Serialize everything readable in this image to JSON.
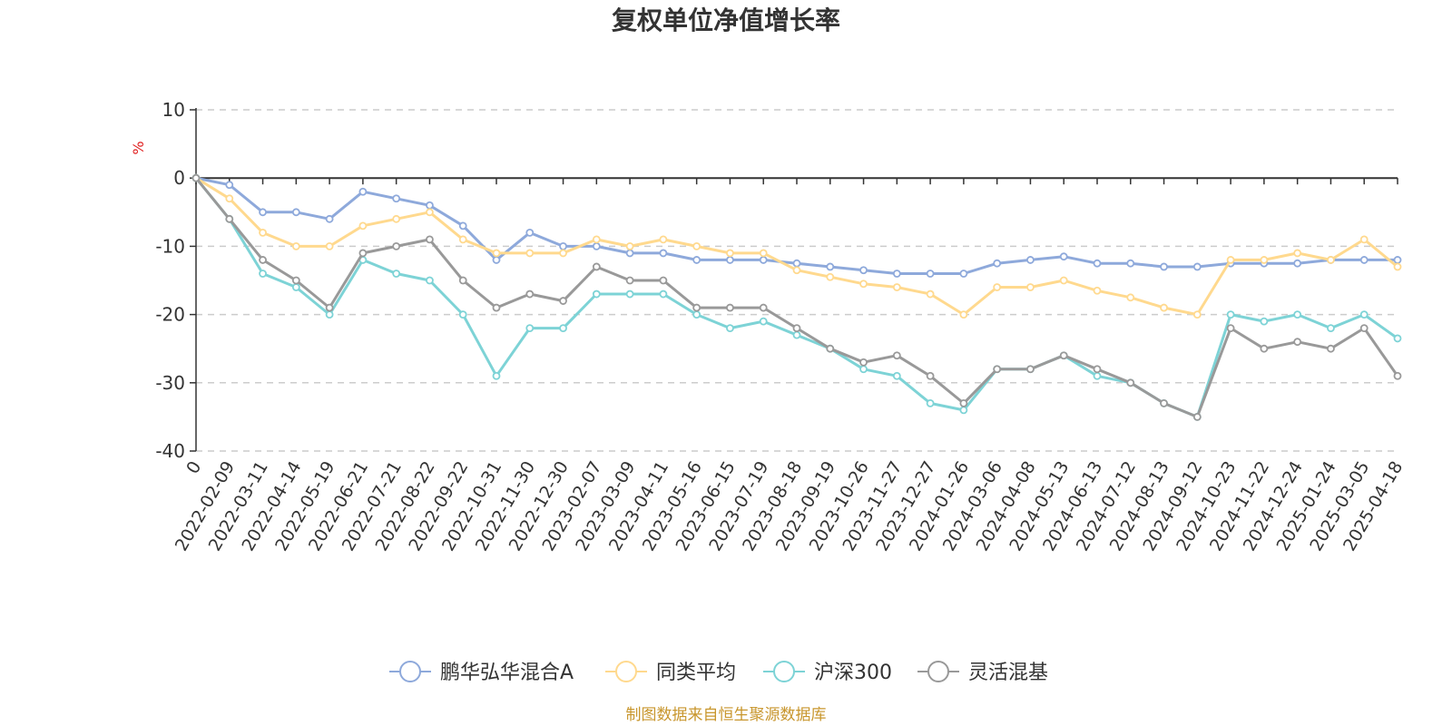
{
  "chart_data": {
    "type": "line",
    "title": "复权单位净值增长率",
    "ylabel": "%",
    "ylim": [
      -40,
      10
    ],
    "yticks": [
      10,
      0,
      -10,
      -20,
      -30,
      -40
    ],
    "grid": true,
    "legend_position": "bottom",
    "source_note": "制图数据来自恒生聚源数据库",
    "categories": [
      "0",
      "2022-02-09",
      "2022-03-11",
      "2022-04-14",
      "2022-05-19",
      "2022-06-21",
      "2022-07-21",
      "2022-08-22",
      "2022-09-22",
      "2022-10-31",
      "2022-11-30",
      "2022-12-30",
      "2023-02-07",
      "2023-03-09",
      "2023-04-11",
      "2023-05-16",
      "2023-06-15",
      "2023-07-19",
      "2023-08-18",
      "2023-09-19",
      "2023-10-26",
      "2023-11-27",
      "2023-12-27",
      "2024-01-26",
      "2024-03-06",
      "2024-04-08",
      "2024-05-13",
      "2024-06-13",
      "2024-07-12",
      "2024-08-13",
      "2024-09-12",
      "2024-10-23",
      "2024-11-22",
      "2024-12-24",
      "2025-01-24",
      "2025-03-05",
      "2025-04-18"
    ],
    "series": [
      {
        "name": "鹏华弘华混合A",
        "color": "#8ea9db",
        "values": [
          0,
          -1,
          -5,
          -5,
          -6,
          -2,
          -3,
          -4,
          -7,
          -12,
          -8,
          -10,
          -10,
          -11,
          -11,
          -12,
          -12,
          -12,
          -12.5,
          -13,
          -13.5,
          -14,
          -14,
          -14,
          -12.5,
          -12,
          -11.5,
          -12.5,
          -12.5,
          -13,
          -13,
          -12.5,
          -12.5,
          -12.5,
          -12,
          -12,
          -12
        ]
      },
      {
        "name": "同类平均",
        "color": "#ffd98e",
        "values": [
          0,
          -3,
          -8,
          -10,
          -10,
          -7,
          -6,
          -5,
          -9,
          -11,
          -11,
          -11,
          -9,
          -10,
          -9,
          -10,
          -11,
          -11,
          -13.5,
          -14.5,
          -15.5,
          -16,
          -17,
          -20,
          -16,
          -16,
          -15,
          -16.5,
          -17.5,
          -19,
          -20,
          -12,
          -12,
          -11,
          -12,
          -9,
          -13
        ]
      },
      {
        "name": "沪深300",
        "color": "#7dd3d6",
        "values": [
          0,
          -6,
          -14,
          -16,
          -20,
          -12,
          -14,
          -15,
          -20,
          -29,
          -22,
          -22,
          -17,
          -17,
          -17,
          -20,
          -22,
          -21,
          -23,
          -25,
          -28,
          -29,
          -33,
          -34,
          -28,
          -28,
          -26,
          -29,
          -30,
          -33,
          -35,
          -20,
          -21,
          -20,
          -22,
          -20,
          -23.5
        ]
      },
      {
        "name": "灵活混基",
        "color": "#999999",
        "values": [
          0,
          -6,
          -12,
          -15,
          -19,
          -11,
          -10,
          -9,
          -15,
          -19,
          -17,
          -18,
          -13,
          -15,
          -15,
          -19,
          -19,
          -19,
          -22,
          -25,
          -27,
          -26,
          -29,
          -33,
          -28,
          -28,
          -26,
          -28,
          -30,
          -33,
          -35,
          -22,
          -25,
          -24,
          -25,
          -22,
          -29
        ]
      }
    ]
  }
}
